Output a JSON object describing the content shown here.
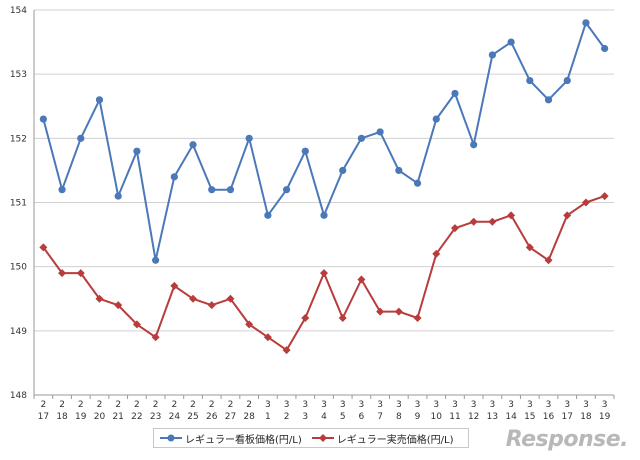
{
  "chart_data": {
    "type": "line",
    "title": "",
    "xlabel": "",
    "ylabel": "",
    "ylim": [
      148,
      154
    ],
    "yticks": [
      "148",
      "149",
      "150",
      "151",
      "152",
      "153",
      "154"
    ],
    "grid": true,
    "legend_position": "bottom",
    "categories": [
      {
        "month": "2",
        "day": "17"
      },
      {
        "month": "2",
        "day": "18"
      },
      {
        "month": "2",
        "day": "19"
      },
      {
        "month": "2",
        "day": "20"
      },
      {
        "month": "2",
        "day": "21"
      },
      {
        "month": "2",
        "day": "22"
      },
      {
        "month": "2",
        "day": "23"
      },
      {
        "month": "2",
        "day": "24"
      },
      {
        "month": "2",
        "day": "25"
      },
      {
        "month": "2",
        "day": "26"
      },
      {
        "month": "2",
        "day": "27"
      },
      {
        "month": "2",
        "day": "28"
      },
      {
        "month": "3",
        "day": "1"
      },
      {
        "month": "3",
        "day": "2"
      },
      {
        "month": "3",
        "day": "3"
      },
      {
        "month": "3",
        "day": "4"
      },
      {
        "month": "3",
        "day": "5"
      },
      {
        "month": "3",
        "day": "6"
      },
      {
        "month": "3",
        "day": "7"
      },
      {
        "month": "3",
        "day": "8"
      },
      {
        "month": "3",
        "day": "9"
      },
      {
        "month": "3",
        "day": "10"
      },
      {
        "month": "3",
        "day": "11"
      },
      {
        "month": "3",
        "day": "12"
      },
      {
        "month": "3",
        "day": "13"
      },
      {
        "month": "3",
        "day": "14"
      },
      {
        "month": "3",
        "day": "15"
      },
      {
        "month": "3",
        "day": "16"
      },
      {
        "month": "3",
        "day": "17"
      },
      {
        "month": "3",
        "day": "18"
      },
      {
        "month": "3",
        "day": "19"
      }
    ],
    "series": [
      {
        "name": "レギュラー看板価格(円/L)",
        "color": "#4a78b8",
        "marker": "circle",
        "values": [
          152.3,
          151.2,
          152.0,
          152.6,
          151.1,
          151.8,
          150.1,
          151.4,
          151.9,
          151.2,
          151.2,
          152.0,
          150.8,
          151.2,
          151.8,
          150.8,
          151.5,
          152.0,
          152.1,
          151.5,
          151.3,
          152.3,
          152.7,
          151.9,
          153.3,
          153.5,
          152.9,
          152.6,
          152.9,
          153.8,
          153.4
        ]
      },
      {
        "name": "レギュラー実売価格(円/L)",
        "color": "#b83c3c",
        "marker": "diamond",
        "values": [
          150.3,
          149.9,
          149.9,
          149.5,
          149.4,
          149.1,
          148.9,
          149.7,
          149.5,
          149.4,
          149.5,
          149.1,
          148.9,
          148.7,
          149.2,
          149.9,
          149.2,
          149.8,
          149.3,
          149.3,
          149.2,
          150.2,
          150.6,
          150.7,
          150.7,
          150.8,
          150.3,
          150.1,
          150.8,
          151.0,
          151.1
        ]
      }
    ]
  },
  "watermark": "Response."
}
